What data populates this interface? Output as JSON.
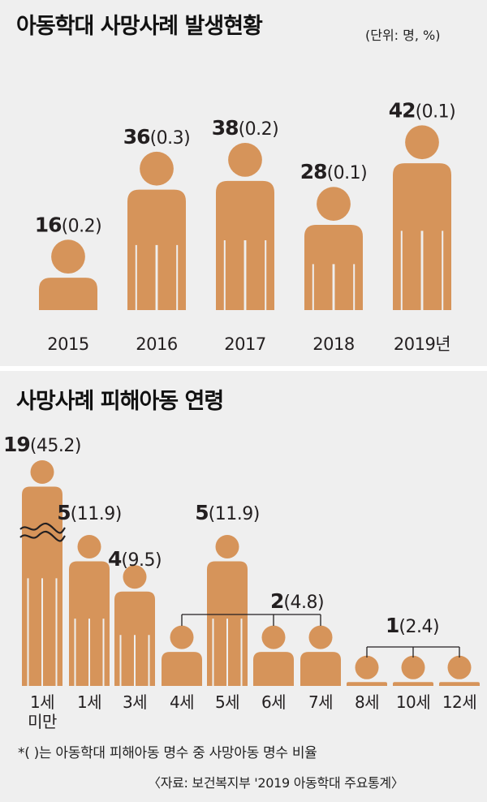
{
  "title_top": "아동학대 사망사례 발생현황",
  "unit": "(단위: 명, %)",
  "title_bottom": "사망사례 피해아동 연령",
  "footnote": "*( )는 아동학대 피해아동 명수 중 사망아동 명수 비율",
  "source": "〈자료: 보건복지부 '2019 아동학대 주요통계〉",
  "figure_color": "#d6945a",
  "chart_data": [
    {
      "type": "bar",
      "categories": [
        "2015",
        "2016",
        "2017",
        "2018",
        "2019년"
      ],
      "values": [
        16,
        36,
        38,
        28,
        42
      ],
      "percents": [
        "0.2",
        "0.3",
        "0.2",
        "0.1",
        "0.1"
      ],
      "value_labels": [
        "16",
        "36",
        "38",
        "28",
        "42"
      ],
      "percent_labels": [
        "(0.2)",
        "(0.3)",
        "(0.2)",
        "(0.1)",
        "(0.1)"
      ]
    },
    {
      "type": "bar",
      "categories": [
        "1세 미만",
        "1세",
        "3세",
        "4세",
        "5세",
        "6세",
        "7세",
        "8세",
        "10세",
        "12세"
      ],
      "values": [
        19,
        5,
        4,
        2,
        5,
        2,
        2,
        1,
        1,
        1
      ],
      "percents": [
        "45.2",
        "11.9",
        "9.5",
        "4.8",
        "11.9",
        "4.8",
        "4.8",
        "2.4",
        "2.4",
        "2.4"
      ],
      "axis_break": "1세 미만",
      "labels": [
        {
          "value": "19",
          "percent": "(45.2)"
        },
        {
          "value": "5",
          "percent": "(11.9)"
        },
        {
          "value": "4",
          "percent": "(9.5)"
        },
        {
          "value": "5",
          "percent": "(11.9)"
        },
        {
          "value": "2",
          "percent": "(4.8)"
        },
        {
          "value": "1",
          "percent": "(2.4)"
        }
      ]
    }
  ]
}
